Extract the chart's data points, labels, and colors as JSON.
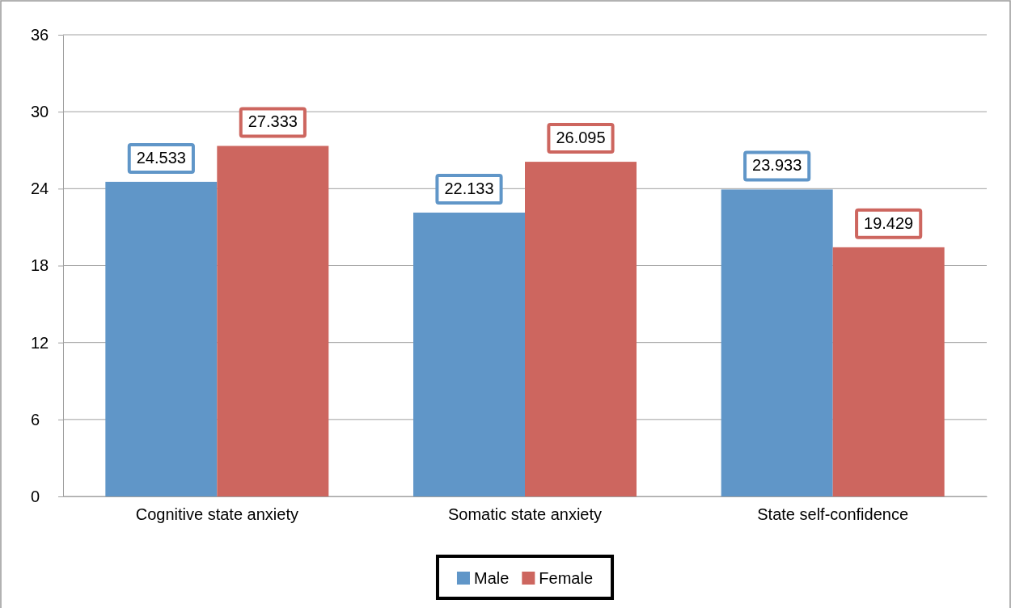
{
  "chart_data": {
    "type": "bar",
    "categories": [
      "Cognitive state anxiety",
      "Somatic state anxiety",
      "State self-confidence"
    ],
    "series": [
      {
        "name": "Male",
        "color": "#6096c8",
        "values": [
          24.533,
          22.133,
          23.933
        ]
      },
      {
        "name": "Female",
        "color": "#cd665f",
        "values": [
          27.333,
          26.095,
          19.429
        ]
      }
    ],
    "ylim": [
      0,
      36
    ],
    "yticks": [
      0,
      6,
      12,
      18,
      24,
      30,
      36
    ],
    "grid": "y",
    "legend": "bottom",
    "data_labels": true
  }
}
